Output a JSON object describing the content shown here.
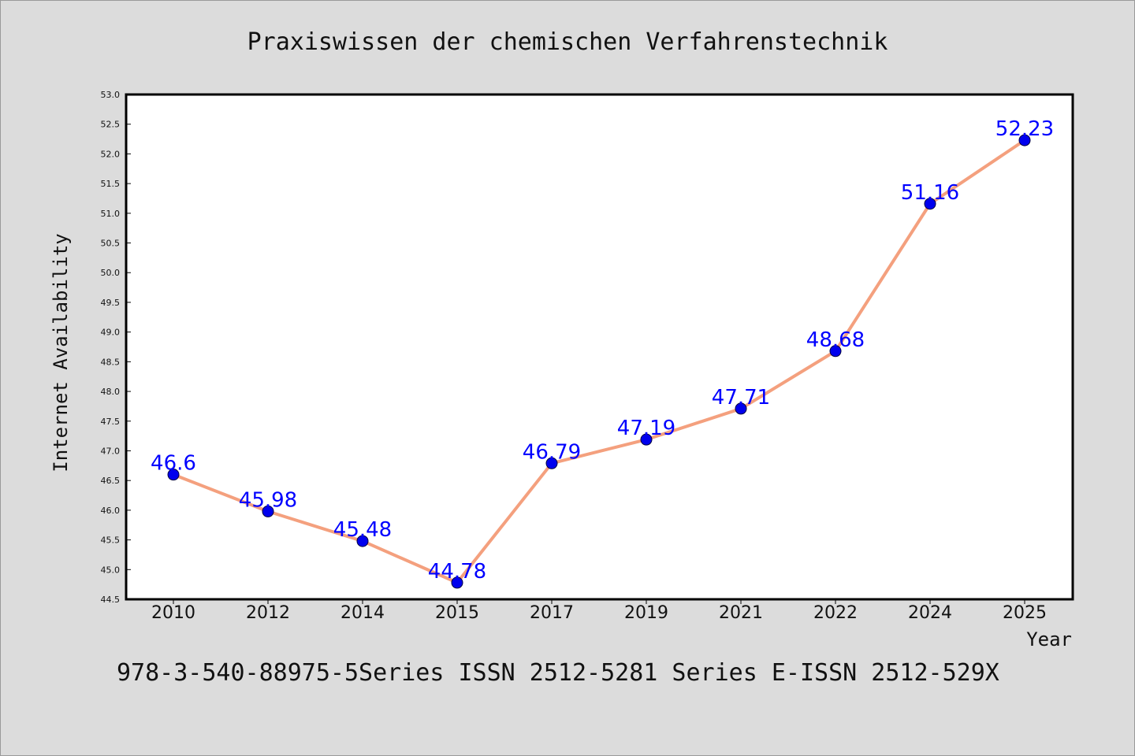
{
  "chart_data": {
    "type": "line",
    "title": "Praxiswissen der chemischen Verfahrenstechnik",
    "xlabel": "Year",
    "ylabel": "Internet Availability",
    "categories": [
      "2010",
      "2012",
      "2014",
      "2015",
      "2017",
      "2019",
      "2021",
      "2022",
      "2024",
      "2025"
    ],
    "series": [
      {
        "values": [
          46.6,
          45.98,
          45.48,
          44.78,
          46.79,
          47.19,
          47.71,
          48.68,
          51.16,
          52.23
        ],
        "data_labels": [
          "46.6",
          "45.98",
          "45.48",
          "44.78",
          "46.79",
          "47.19",
          "47.71",
          "48.68",
          "51.16",
          "52.23"
        ]
      }
    ],
    "ylim": [
      44.5,
      53.0
    ],
    "yticks": [
      "44.5",
      "45.0",
      "45.5",
      "46.0",
      "46.5",
      "47.0",
      "47.5",
      "48.0",
      "48.5",
      "49.0",
      "49.5",
      "50.0",
      "50.5",
      "51.0",
      "51.5",
      "52.0",
      "52.5",
      "53.0"
    ],
    "grid": false,
    "colors": {
      "line": "#f4a07e",
      "marker": "#0000ee",
      "data_label": "#0000ff",
      "background": "#dcdcdc",
      "plot_background": "#ffffff"
    }
  },
  "footer": "978-3-540-88975-5Series ISSN 2512-5281 Series E-ISSN 2512-529X"
}
